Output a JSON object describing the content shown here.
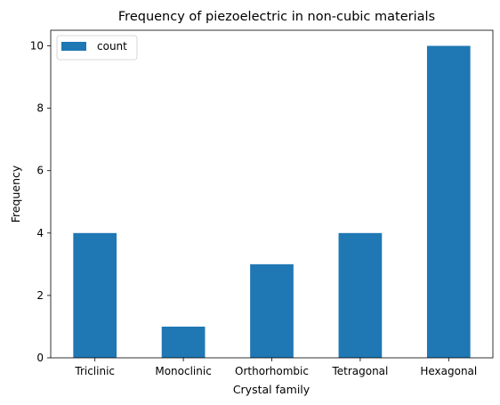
{
  "chart_data": {
    "type": "bar",
    "title": "Frequency of piezoelectric in non-cubic materials",
    "xlabel": "Crystal family",
    "ylabel": "Frequency",
    "categories": [
      "Triclinic",
      "Monoclinic",
      "Orthorhombic",
      "Tetragonal",
      "Hexagonal"
    ],
    "series": [
      {
        "name": "count",
        "values": [
          4,
          1,
          3,
          4,
          10
        ],
        "color": "#1f77b4"
      }
    ],
    "ylim": [
      0,
      10.5
    ],
    "yticks": [
      0,
      2,
      4,
      6,
      8,
      10
    ],
    "grid": false,
    "legend_position": "top-left"
  }
}
